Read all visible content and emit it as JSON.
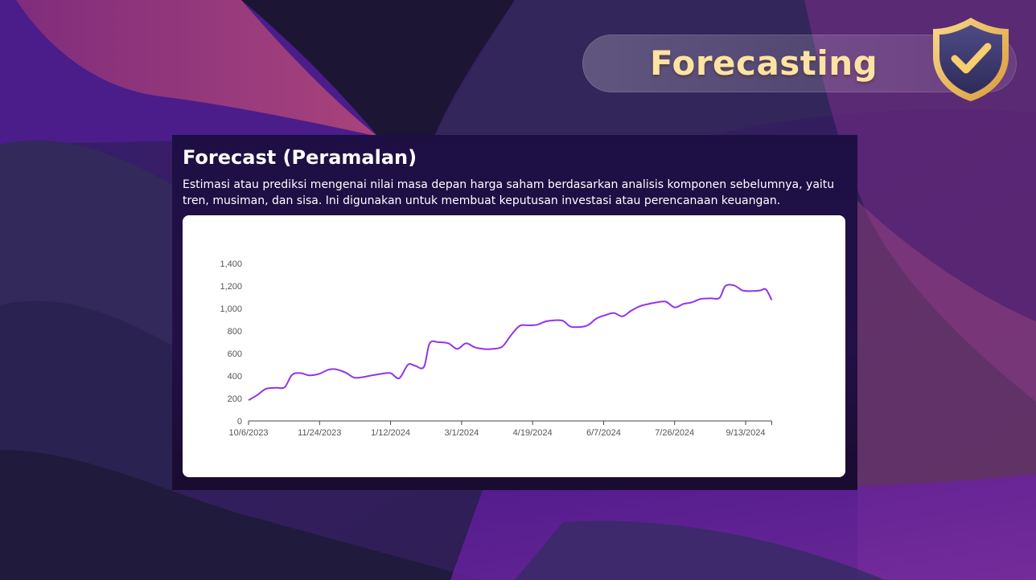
{
  "banner": {
    "title": "Forecasting",
    "icon": "shield-check-icon",
    "title_color": "#fbe3a4"
  },
  "panel": {
    "title": "Forecast (Peramalan)",
    "description": "Estimasi atau prediksi mengenai nilai masa depan harga saham berdasarkan analisis komponen sebelumnya, yaitu tren, musiman, dan sisa. Ini digunakan untuk membuat keputusan investasi atau perencanaan keuangan."
  },
  "chart_data": {
    "type": "line",
    "title": "",
    "xlabel": "",
    "ylabel": "",
    "x_ticks": [
      "10/6/2023",
      "11/24/2023",
      "1/12/2024",
      "3/1/2024",
      "4/19/2024",
      "6/7/2024",
      "7/26/2024",
      "9/13/2024"
    ],
    "x_range": [
      "10/6/2023",
      "10/1/2024"
    ],
    "ylim": [
      0,
      1400
    ],
    "y_ticks": [
      0,
      200,
      400,
      600,
      800,
      1000,
      1200,
      1400
    ],
    "y_tick_labels": [
      "0",
      "200",
      "400",
      "600",
      "800",
      "1,000",
      "1,200",
      "1,400"
    ],
    "grid": false,
    "line_color": "#9333ea",
    "series": [
      {
        "name": "",
        "points": [
          [
            "10/6/2023",
            185
          ],
          [
            "10/12/2023",
            230
          ],
          [
            "10/18/2023",
            285
          ],
          [
            "10/25/2023",
            295
          ],
          [
            "10/31/2023",
            300
          ],
          [
            "11/5/2023",
            410
          ],
          [
            "11/11/2023",
            425
          ],
          [
            "11/17/2023",
            405
          ],
          [
            "11/24/2023",
            420
          ],
          [
            "11/30/2023",
            455
          ],
          [
            "12/5/2023",
            460
          ],
          [
            "12/12/2023",
            430
          ],
          [
            "12/18/2023",
            385
          ],
          [
            "12/24/2023",
            390
          ],
          [
            "12/30/2023",
            405
          ],
          [
            "1/6/2024",
            420
          ],
          [
            "1/12/2024",
            425
          ],
          [
            "1/18/2024",
            380
          ],
          [
            "1/24/2024",
            500
          ],
          [
            "1/29/2024",
            490
          ],
          [
            "2/4/2024",
            480
          ],
          [
            "2/8/2024",
            690
          ],
          [
            "2/14/2024",
            700
          ],
          [
            "2/21/2024",
            690
          ],
          [
            "2/27/2024",
            640
          ],
          [
            "3/4/2024",
            690
          ],
          [
            "3/10/2024",
            655
          ],
          [
            "3/16/2024",
            640
          ],
          [
            "3/22/2024",
            640
          ],
          [
            "3/29/2024",
            660
          ],
          [
            "4/4/2024",
            760
          ],
          [
            "4/10/2024",
            845
          ],
          [
            "4/16/2024",
            850
          ],
          [
            "4/22/2024",
            855
          ],
          [
            "4/28/2024",
            885
          ],
          [
            "5/4/2024",
            895
          ],
          [
            "5/10/2024",
            890
          ],
          [
            "5/15/2024",
            840
          ],
          [
            "5/21/2024",
            835
          ],
          [
            "5/27/2024",
            850
          ],
          [
            "6/2/2024",
            910
          ],
          [
            "6/8/2024",
            940
          ],
          [
            "6/14/2024",
            960
          ],
          [
            "6/20/2024",
            930
          ],
          [
            "6/26/2024",
            980
          ],
          [
            "7/2/2024",
            1020
          ],
          [
            "7/8/2024",
            1040
          ],
          [
            "7/14/2024",
            1055
          ],
          [
            "7/20/2024",
            1060
          ],
          [
            "7/26/2024",
            1010
          ],
          [
            "8/1/2024",
            1040
          ],
          [
            "8/7/2024",
            1055
          ],
          [
            "8/13/2024",
            1085
          ],
          [
            "8/20/2024",
            1090
          ],
          [
            "8/26/2024",
            1095
          ],
          [
            "8/30/2024",
            1200
          ],
          [
            "9/5/2024",
            1205
          ],
          [
            "9/11/2024",
            1160
          ],
          [
            "9/17/2024",
            1155
          ],
          [
            "9/23/2024",
            1160
          ],
          [
            "9/27/2024",
            1170
          ],
          [
            "10/1/2024",
            1075
          ]
        ]
      }
    ]
  }
}
